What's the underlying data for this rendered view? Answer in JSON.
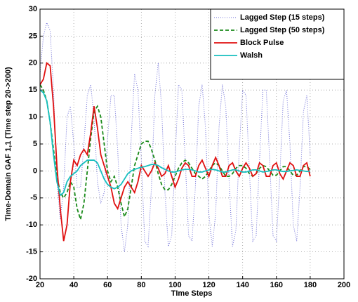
{
  "chart_data": {
    "type": "line",
    "xlabel": "TIme Steps",
    "ylabel": "Time-Domain GAF 1,1 (Time step 20->200)",
    "xlim": [
      20,
      200
    ],
    "ylim": [
      -20,
      30
    ],
    "xticks": [
      20,
      40,
      60,
      80,
      100,
      120,
      140,
      160,
      180,
      200
    ],
    "yticks": [
      -20,
      -15,
      -10,
      -5,
      0,
      5,
      10,
      15,
      20,
      25,
      30
    ],
    "grid": true,
    "legend": "upper right",
    "x": [
      20,
      22,
      24,
      26,
      28,
      30,
      32,
      34,
      36,
      38,
      40,
      42,
      44,
      46,
      48,
      50,
      52,
      54,
      56,
      58,
      60,
      62,
      64,
      66,
      68,
      70,
      72,
      74,
      76,
      78,
      80,
      82,
      84,
      86,
      88,
      90,
      92,
      94,
      96,
      98,
      100,
      102,
      104,
      106,
      108,
      110,
      112,
      114,
      116,
      118,
      120,
      122,
      124,
      126,
      128,
      130,
      132,
      134,
      136,
      138,
      140,
      142,
      144,
      146,
      148,
      150,
      152,
      154,
      156,
      158,
      160,
      162,
      164,
      166,
      168,
      170,
      172,
      174,
      176,
      178,
      180
    ],
    "series": [
      {
        "name": "Lagged Step (15 steps)",
        "color": "#6b6bd6",
        "style": "dotted",
        "values": [
          18,
          25,
          27.5,
          26,
          15,
          -2,
          -9,
          -3,
          10,
          12,
          5,
          -3,
          -3,
          5,
          14,
          16,
          10,
          -2,
          -6,
          -4,
          6,
          14,
          14,
          4,
          -10,
          -15,
          -10,
          6,
          18,
          15,
          2,
          -13,
          -14,
          -3,
          14,
          20,
          12,
          -4,
          -14,
          -12,
          2,
          16,
          15,
          2,
          -12,
          -13,
          -3,
          12,
          16,
          8,
          -8,
          -14,
          -8,
          8,
          16,
          12,
          -2,
          -14,
          -11,
          4,
          15,
          14,
          0,
          -13,
          -12,
          2,
          15,
          15,
          2,
          -12,
          -13,
          -1,
          13,
          15,
          5,
          -10,
          -13,
          -3,
          11,
          14,
          3
        ]
      },
      {
        "name": "Lagged Step (50 steps)",
        "color": "#1a8a1a",
        "style": "dashed",
        "values": [
          16,
          15,
          13,
          9,
          4,
          -1,
          -4,
          -5,
          -4,
          -2,
          -3,
          -7,
          -9,
          -6,
          0,
          6,
          11,
          12,
          10,
          5,
          0,
          -2,
          -1,
          -3,
          -6,
          -8.5,
          -7,
          -3,
          1,
          3,
          5,
          5.5,
          5.5,
          4,
          2,
          -0.5,
          -2.5,
          -3.5,
          -3.5,
          -2.5,
          -1,
          0.5,
          1.5,
          2,
          1.5,
          0.5,
          -0.5,
          -1,
          -1.5,
          -1,
          0,
          1,
          1.5,
          1,
          0,
          -1,
          -1,
          -0.5,
          0.5,
          1,
          1,
          0.5,
          -0.5,
          -1,
          -0.5,
          0.5,
          1,
          0.8,
          0,
          -0.8,
          -0.8,
          0,
          0.8,
          0.8,
          0,
          -0.8,
          -0.8,
          0,
          0.8,
          0.8,
          0.3
        ]
      },
      {
        "name": "Block Pulse",
        "color": "#e01010",
        "style": "solid",
        "values": [
          16,
          17,
          20,
          19.5,
          12,
          1,
          -7,
          -13,
          -10,
          -2,
          2,
          1,
          3,
          4,
          3,
          7,
          12,
          8,
          3,
          1,
          -1,
          -3,
          -6,
          -7,
          -5,
          -3,
          -2,
          -3,
          -4,
          -2,
          1,
          0,
          -1,
          0,
          1.5,
          0.5,
          -1,
          -0.5,
          1,
          -1,
          -3,
          -1.5,
          0.5,
          1.5,
          1,
          -1,
          -1,
          1,
          2,
          0.5,
          -1,
          1,
          2.5,
          1,
          -1,
          -1,
          1,
          1.5,
          0,
          -1,
          0.5,
          1.5,
          0.5,
          -1,
          -0.5,
          1.5,
          1,
          -1,
          -1,
          1,
          1.5,
          -0.5,
          -1.5,
          0,
          1.5,
          1,
          -1,
          -1,
          1,
          1.5,
          -1
        ]
      },
      {
        "name": "Walsh",
        "color": "#17bfbf",
        "style": "solid",
        "values": [
          15,
          14.5,
          13,
          9,
          3,
          -2,
          -4.5,
          -4,
          -2,
          -1,
          -0.5,
          0,
          1,
          1.5,
          2,
          2,
          2,
          1.5,
          0,
          -1.5,
          -2.5,
          -3,
          -3.3,
          -3,
          -2.5,
          -1.5,
          -0.5,
          0,
          0.3,
          0.5,
          0.7,
          0.8,
          1,
          1.2,
          1.2,
          1,
          0.6,
          0.3,
          0,
          -0.2,
          -0.2,
          0,
          0.2,
          0.3,
          0.3,
          0.2,
          0,
          -0.2,
          -0.2,
          0,
          0.2,
          0.3,
          0.2,
          0,
          -0.2,
          -0.2,
          0,
          0.2,
          0.2,
          0,
          -0.2,
          -0.2,
          0,
          0.2,
          0.2,
          0,
          -0.2,
          -0.1,
          0,
          0.2,
          0.2,
          0,
          -0.1,
          -0.1,
          0,
          0.1,
          0.2,
          0.1,
          0,
          -0.1,
          0
        ]
      }
    ]
  }
}
